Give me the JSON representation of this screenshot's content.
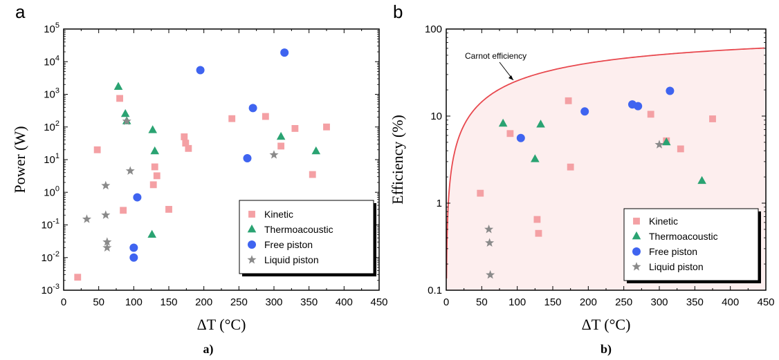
{
  "figure": {
    "panel_a_letter": "a",
    "panel_b_letter": "b",
    "caption_a": "a)",
    "caption_b": "b)"
  },
  "chart_data": [
    {
      "type": "scatter",
      "panel": "a",
      "title": "",
      "xlabel": "ΔT (°C)",
      "ylabel": "Power (W)",
      "yscale": "log",
      "xlim": [
        0,
        450
      ],
      "ylim": [
        0.001,
        100000
      ],
      "xticks": [
        "0",
        "50",
        "100",
        "150",
        "200",
        "250",
        "300",
        "350",
        "400",
        "450"
      ],
      "yticks": [
        "10^-3",
        "10^-2",
        "10^-1",
        "10^0",
        "10^1",
        "10^2",
        "10^3",
        "10^4",
        "10^5"
      ],
      "legend_position": "bottom-right",
      "series": [
        {
          "name": "Kinetic",
          "marker": "square",
          "color": "#f4a0a4",
          "points": [
            [
              20,
              0.0025
            ],
            [
              48,
              20
            ],
            [
              80,
              750
            ],
            [
              85,
              0.28
            ],
            [
              128,
              1.7
            ],
            [
              130,
              6
            ],
            [
              133,
              3.2
            ],
            [
              150,
              0.3
            ],
            [
              172,
              50
            ],
            [
              174,
              32
            ],
            [
              178,
              22
            ],
            [
              240,
              180
            ],
            [
              288,
              210
            ],
            [
              310,
              26
            ],
            [
              330,
              90
            ],
            [
              355,
              3.5
            ],
            [
              375,
              100
            ]
          ]
        },
        {
          "name": "Thermoacoustic",
          "marker": "triangle",
          "color": "#2aa372",
          "points": [
            [
              78,
              1700
            ],
            [
              88,
              250
            ],
            [
              90,
              150
            ],
            [
              126,
              0.05
            ],
            [
              127,
              80
            ],
            [
              130,
              18
            ],
            [
              310,
              50
            ],
            [
              360,
              18
            ]
          ]
        },
        {
          "name": "Free piston",
          "marker": "circle",
          "color": "#3f64f0",
          "points": [
            [
              100,
              0.02
            ],
            [
              100,
              0.01
            ],
            [
              105,
              0.7
            ],
            [
              195,
              5500
            ],
            [
              262,
              11
            ],
            [
              270,
              380
            ],
            [
              315,
              19000
            ]
          ]
        },
        {
          "name": "Liquid piston",
          "marker": "star",
          "color": "#8a8a8a",
          "points": [
            [
              33,
              0.15
            ],
            [
              60,
              1.6
            ],
            [
              60,
              0.2
            ],
            [
              62,
              0.03
            ],
            [
              62,
              0.02
            ],
            [
              90,
              150
            ],
            [
              95,
              4.5
            ],
            [
              300,
              14
            ]
          ]
        }
      ]
    },
    {
      "type": "scatter",
      "panel": "b",
      "title": "",
      "xlabel": "ΔT (°C)",
      "ylabel": "Efficiency (%)",
      "yscale": "log",
      "xlim": [
        0,
        450
      ],
      "ylim": [
        0.1,
        100
      ],
      "xticks": [
        "0",
        "50",
        "100",
        "150",
        "200",
        "250",
        "300",
        "350",
        "400",
        "450"
      ],
      "yticks": [
        "0.1",
        "1",
        "10",
        "100"
      ],
      "legend_position": "bottom-right",
      "annotation": "Carnot efficiency",
      "curve": {
        "name": "Carnot efficiency",
        "color": "#e8484e",
        "fill": "#fdeeee",
        "cold_temp_K": 293
      },
      "series": [
        {
          "name": "Kinetic",
          "marker": "square",
          "color": "#f4a0a4",
          "points": [
            [
              48,
              1.3
            ],
            [
              90,
              6.3
            ],
            [
              128,
              0.65
            ],
            [
              130,
              0.45
            ],
            [
              172,
              15
            ],
            [
              175,
              2.6
            ],
            [
              288,
              10.5
            ],
            [
              310,
              5.2
            ],
            [
              330,
              4.2
            ],
            [
              375,
              9.3
            ]
          ]
        },
        {
          "name": "Thermoacoustic",
          "marker": "triangle",
          "color": "#2aa372",
          "points": [
            [
              80,
              8.2
            ],
            [
              125,
              3.2
            ],
            [
              133,
              8.0
            ],
            [
              310,
              5.0
            ],
            [
              360,
              1.8
            ]
          ]
        },
        {
          "name": "Free piston",
          "marker": "circle",
          "color": "#3f64f0",
          "points": [
            [
              105,
              5.6
            ],
            [
              195,
              11.3
            ],
            [
              262,
              13.6
            ],
            [
              270,
              13.0
            ],
            [
              315,
              19.5
            ]
          ]
        },
        {
          "name": "Liquid piston",
          "marker": "star",
          "color": "#8a8a8a",
          "points": [
            [
              60,
              0.5
            ],
            [
              61,
              0.35
            ],
            [
              62,
              0.15
            ],
            [
              300,
              4.7
            ]
          ]
        }
      ]
    }
  ]
}
